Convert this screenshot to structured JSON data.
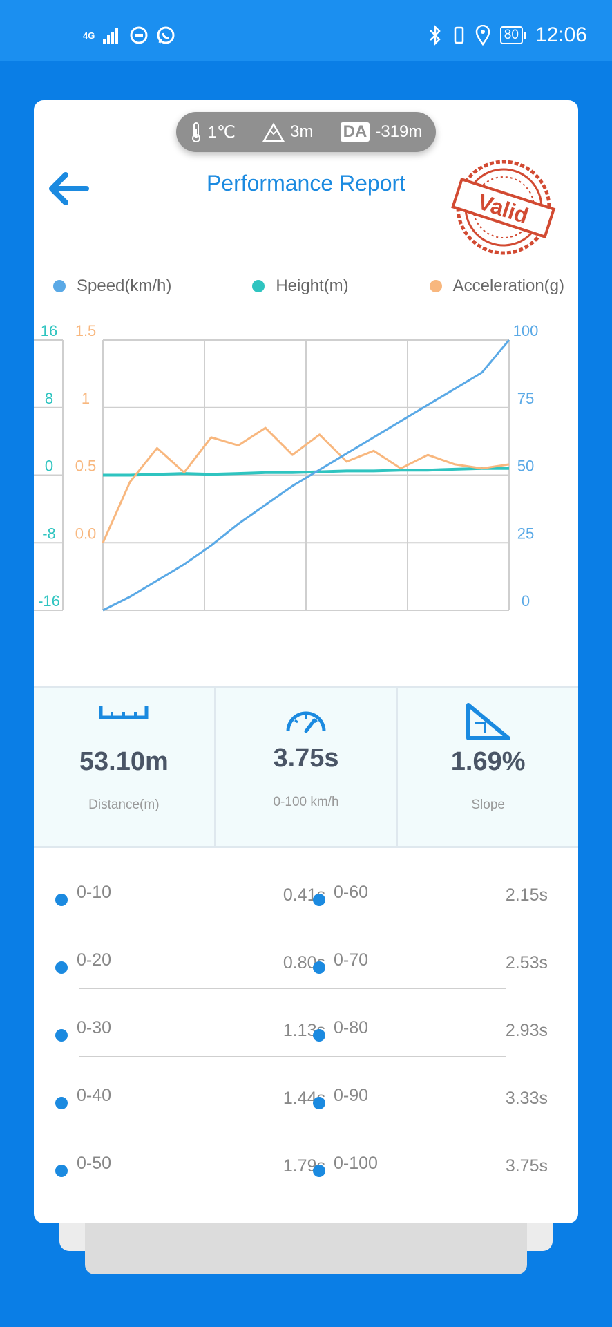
{
  "statusbar": {
    "network": "4G",
    "battery": "80",
    "time": "12:06"
  },
  "env": {
    "temperature": "1℃",
    "altitude": "3m",
    "da_badge": "DA",
    "density_altitude": "-319m"
  },
  "header": {
    "title": "Performance Report",
    "stamp_text": "Valid"
  },
  "colors": {
    "speed": "#5aa9e6",
    "height": "#2fc4c0",
    "acceleration": "#f8b77e",
    "accent": "#1b8ae0"
  },
  "legend": {
    "speed": "Speed(km/h)",
    "height": "Height(m)",
    "acceleration": "Acceleration(g)"
  },
  "chart_data": {
    "type": "line",
    "x": [
      0,
      0.25,
      0.5,
      0.75,
      1.0,
      1.25,
      1.5,
      1.75,
      2.0,
      2.25,
      2.5,
      2.75,
      3.0,
      3.25,
      3.5,
      3.75
    ],
    "series": [
      {
        "name": "Speed(km/h)",
        "axis": "right",
        "values": [
          0,
          5,
          11,
          17,
          24,
          32,
          39,
          46,
          52,
          58,
          64,
          70,
          76,
          82,
          88,
          100
        ]
      },
      {
        "name": "Height(m)",
        "axis": "left-outer",
        "values": [
          0,
          0,
          0.1,
          0.2,
          0.1,
          0.2,
          0.3,
          0.3,
          0.4,
          0.5,
          0.5,
          0.6,
          0.6,
          0.7,
          0.8,
          0.8
        ]
      },
      {
        "name": "Acceleration(g)",
        "axis": "left-inner",
        "values": [
          0.0,
          0.45,
          0.7,
          0.52,
          0.78,
          0.72,
          0.85,
          0.65,
          0.8,
          0.6,
          0.68,
          0.55,
          0.65,
          0.58,
          0.55,
          0.58
        ]
      }
    ],
    "axes": {
      "left_outer_ticks": [
        "16",
        "8",
        "0",
        "-8",
        "-16"
      ],
      "left_inner_ticks": [
        "1.5",
        "1",
        "0.5",
        "0.0"
      ],
      "right_ticks": [
        "100",
        "75",
        "50",
        "25",
        "0"
      ],
      "right_range": [
        0,
        100
      ],
      "left_outer_range": [
        -16,
        16
      ],
      "left_inner_range": [
        -0.5,
        1.5
      ]
    },
    "grid": true
  },
  "stats": [
    {
      "value": "53.10m",
      "label": "Distance(m)",
      "icon": "ruler-icon"
    },
    {
      "value": "3.75s",
      "label": "0-100 km/h",
      "icon": "speedometer-icon"
    },
    {
      "value": "1.69%",
      "label": "Slope",
      "icon": "slope-icon"
    }
  ],
  "splits": [
    {
      "left_label": "0-10",
      "left_value": "0.41s",
      "right_label": "0-60",
      "right_value": "2.15s"
    },
    {
      "left_label": "0-20",
      "left_value": "0.80s",
      "right_label": "0-70",
      "right_value": "2.53s"
    },
    {
      "left_label": "0-30",
      "left_value": "1.13s",
      "right_label": "0-80",
      "right_value": "2.93s"
    },
    {
      "left_label": "0-40",
      "left_value": "1.44s",
      "right_label": "0-90",
      "right_value": "3.33s"
    },
    {
      "left_label": "0-50",
      "left_value": "1.79s",
      "right_label": "0-100",
      "right_value": "3.75s"
    }
  ]
}
